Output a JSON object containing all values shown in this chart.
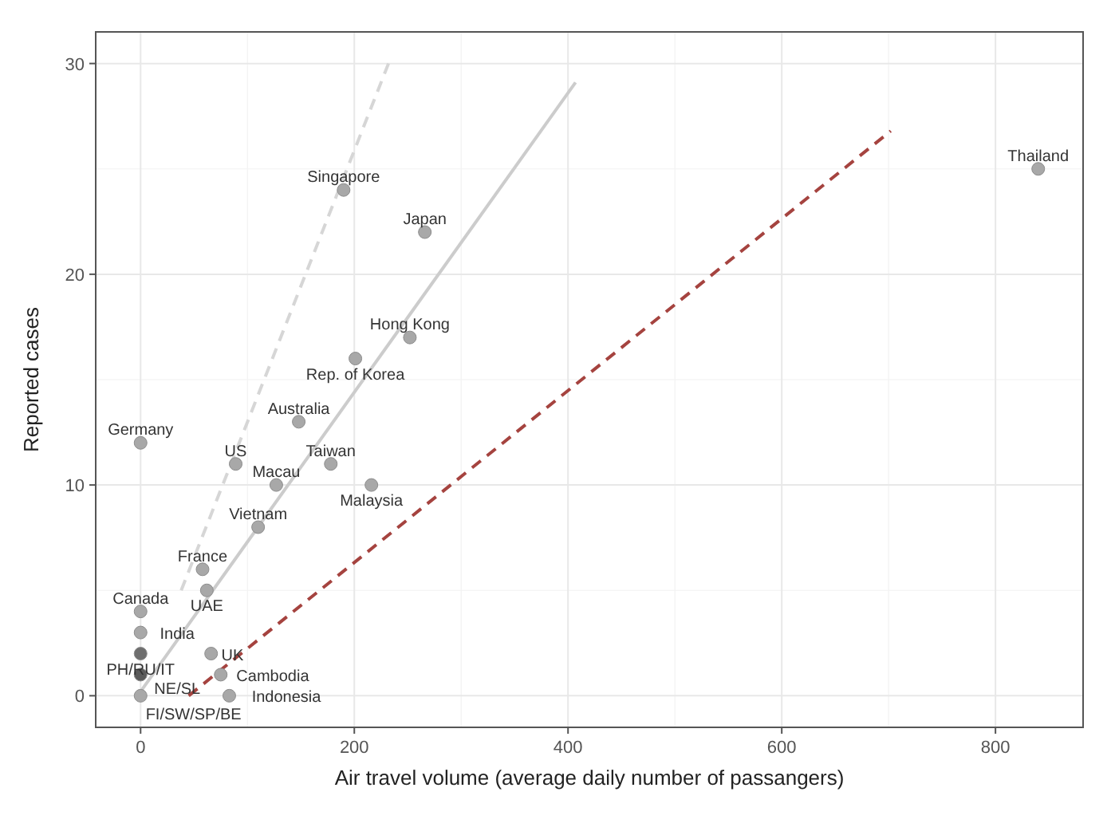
{
  "chart_data": {
    "type": "scatter",
    "xlabel": "Air travel volume (average daily number of passangers)",
    "ylabel": "Reported cases",
    "xlim": [
      -42,
      882
    ],
    "ylim": [
      -1.5,
      31.5
    ],
    "xticks": [
      0,
      200,
      400,
      600,
      800
    ],
    "yticks": [
      0,
      10,
      20,
      30
    ],
    "grid": true,
    "series": [
      {
        "marker": "circle",
        "x": [
          0,
          89,
          178,
          127,
          216,
          110,
          58,
          62,
          0,
          0,
          0,
          66,
          0,
          0,
          75,
          83,
          190,
          266,
          252,
          201,
          148,
          840
        ],
        "values": [
          12,
          11,
          11,
          10,
          10,
          8,
          6,
          5,
          4,
          3,
          2,
          2,
          1,
          0,
          1,
          0,
          24,
          22,
          17,
          16,
          13,
          25
        ],
        "colors": [
          "#a8a8a8",
          "#a8a8a8",
          "#a8a8a8",
          "#a8a8a8",
          "#a8a8a8",
          "#a8a8a8",
          "#a8a8a8",
          "#a8a8a8",
          "#a8a8a8",
          "#a8a8a8",
          "#6e6e6e",
          "#a8a8a8",
          "#5a5a5a",
          "#a8a8a8",
          "#a8a8a8",
          "#a8a8a8",
          "#a8a8a8",
          "#a8a8a8",
          "#a8a8a8",
          "#a8a8a8",
          "#a8a8a8",
          "#a8a8a8"
        ]
      },
      {
        "type": "line",
        "x": [
          0,
          407
        ],
        "values": [
          0.2,
          29.1
        ],
        "color": "#cccccc",
        "line_style": "solid"
      },
      {
        "type": "line",
        "x": [
          38,
          232
        ],
        "values": [
          5,
          30
        ],
        "color": "#d6d6d6",
        "line_style": "dashed"
      },
      {
        "type": "line",
        "x": [
          45,
          702
        ],
        "values": [
          0,
          26.8
        ],
        "color": "#a5433f",
        "line_style": "dashed"
      }
    ],
    "annotations": [
      {
        "text": "Germany",
        "x": 0,
        "y": 12
      },
      {
        "text": "US",
        "x": 89,
        "y": 11
      },
      {
        "text": "Taiwan",
        "x": 178,
        "y": 11
      },
      {
        "text": "Macau",
        "x": 127,
        "y": 10
      },
      {
        "text": "Malaysia",
        "x": 216,
        "y": 10
      },
      {
        "text": "Vietnam",
        "x": 110,
        "y": 8
      },
      {
        "text": "France",
        "x": 58,
        "y": 6
      },
      {
        "text": "UAE",
        "x": 62,
        "y": 5
      },
      {
        "text": "Canada",
        "x": 0,
        "y": 4
      },
      {
        "text": "India",
        "x": 0,
        "y": 3
      },
      {
        "text": "PH/RU/IT",
        "x": 0,
        "y": 2
      },
      {
        "text": "UK",
        "x": 66,
        "y": 2
      },
      {
        "text": "NE/SL",
        "x": 0,
        "y": 1
      },
      {
        "text": "FI/SW/SP/BE",
        "x": 0,
        "y": 0
      },
      {
        "text": "Cambodia",
        "x": 75,
        "y": 1
      },
      {
        "text": "Indonesia",
        "x": 83,
        "y": 0
      },
      {
        "text": "Singapore",
        "x": 190,
        "y": 24
      },
      {
        "text": "Japan",
        "x": 266,
        "y": 22
      },
      {
        "text": "Hong Kong",
        "x": 252,
        "y": 17
      },
      {
        "text": "Rep. of Korea",
        "x": 201,
        "y": 16
      },
      {
        "text": "Australia",
        "x": 148,
        "y": 13
      },
      {
        "text": "Thailand",
        "x": 840,
        "y": 25
      }
    ]
  }
}
